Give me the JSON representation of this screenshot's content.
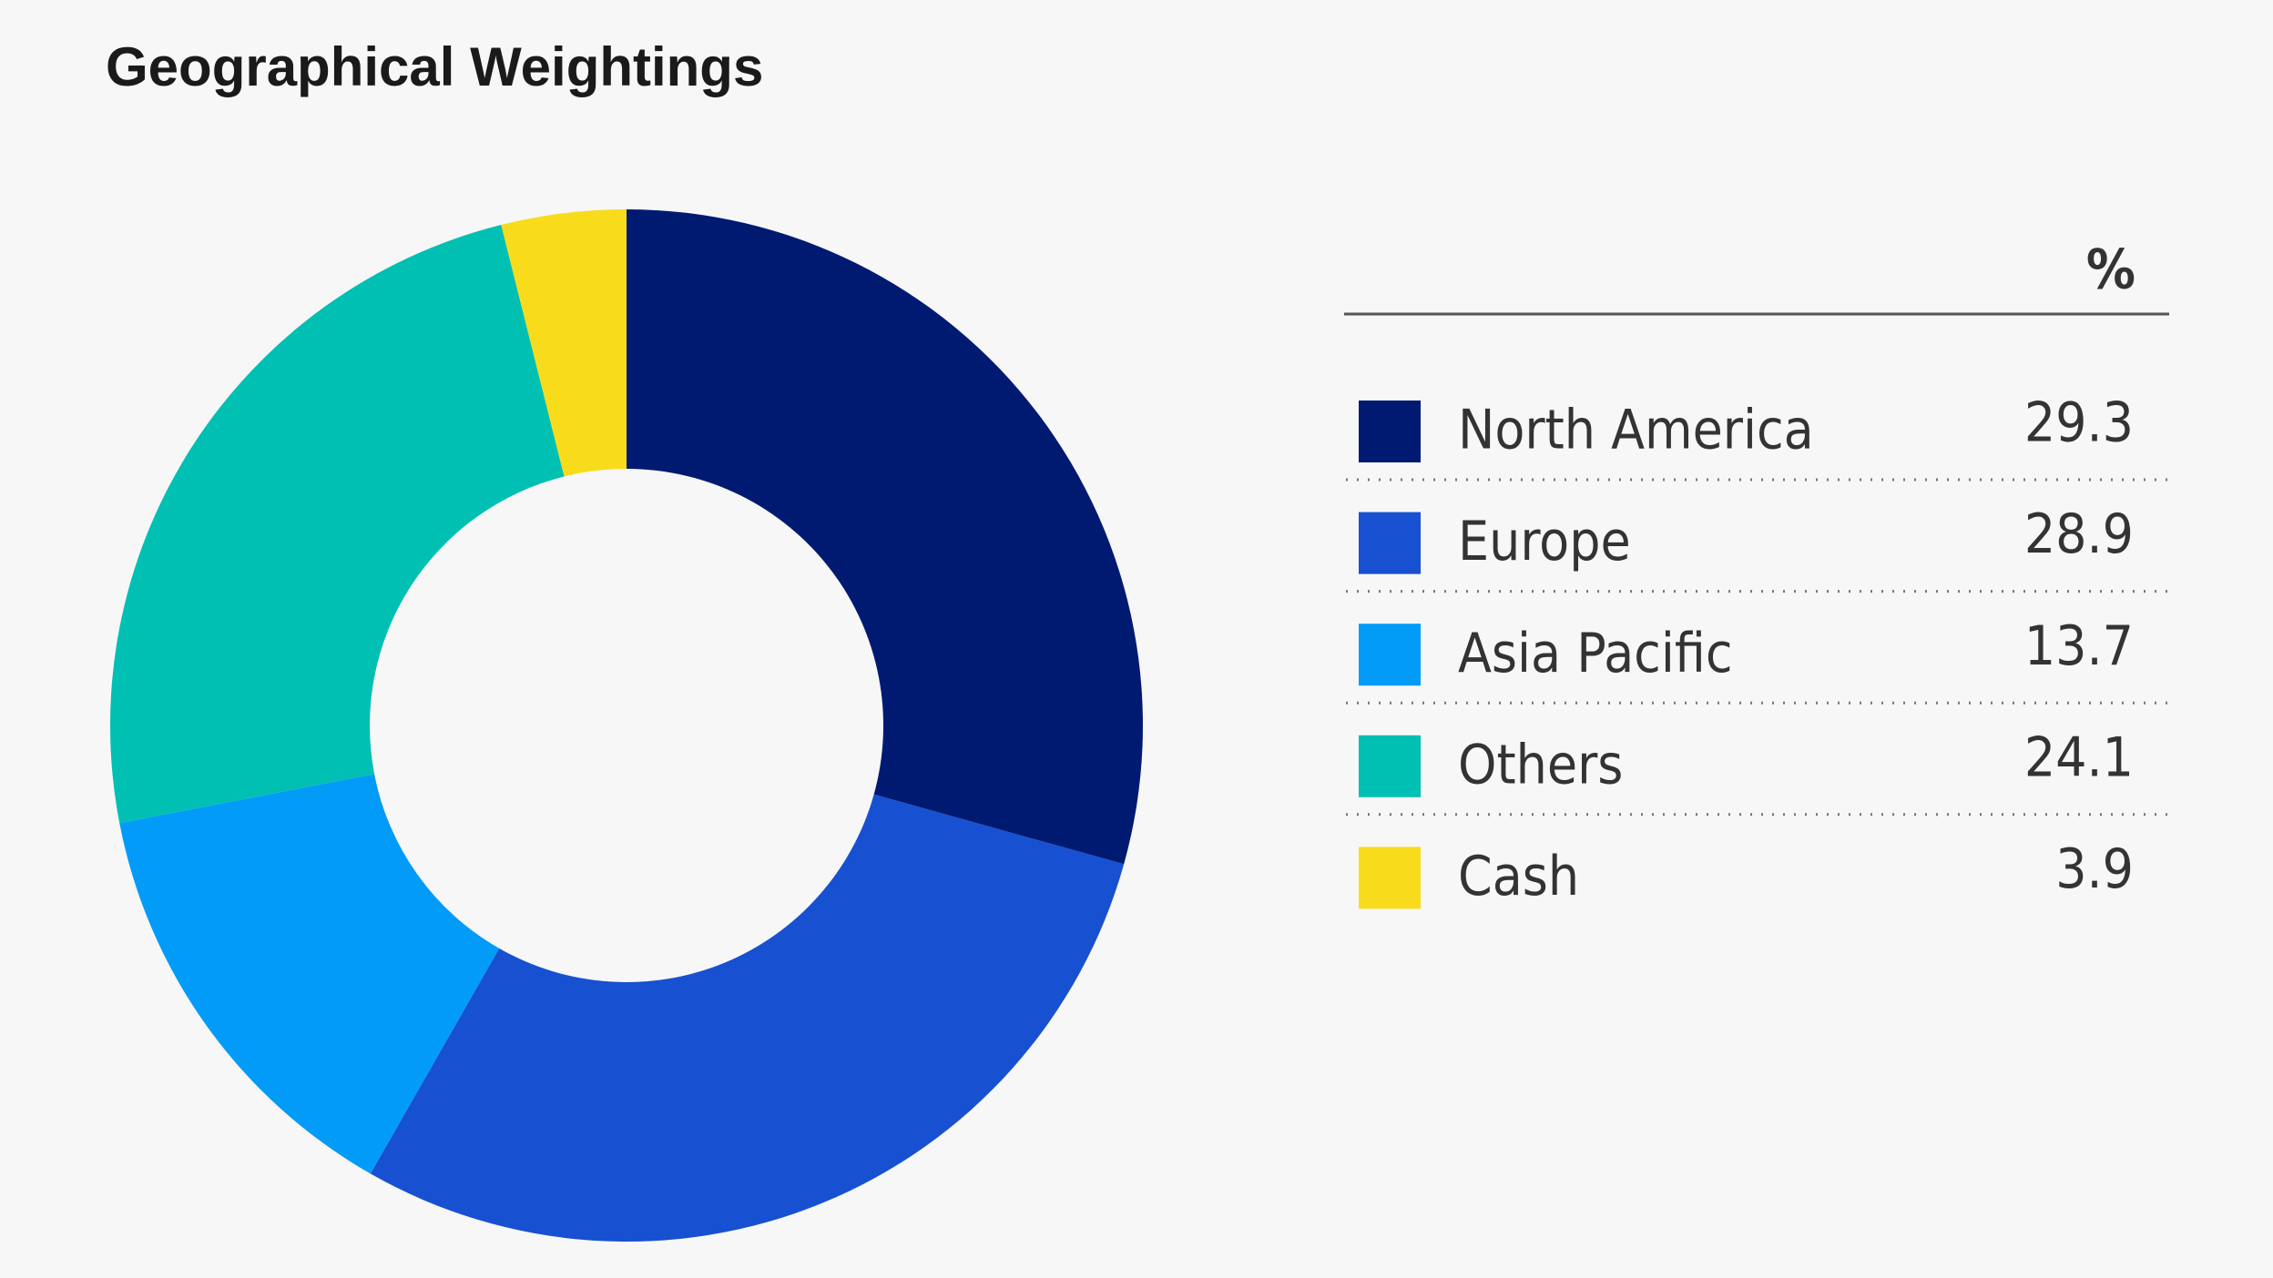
{
  "chart_data": {
    "type": "donut",
    "title": "Geographical Weightings",
    "categories": [
      "North America",
      "Europe",
      "Asia Pacific",
      "Others",
      "Cash"
    ],
    "values": [
      29.3,
      28.9,
      13.7,
      24.1,
      3.9
    ],
    "colors": [
      "#001a72",
      "#1750d1",
      "#039bf8",
      "#00bfb3",
      "#f8dc1c"
    ],
    "value_header": "%"
  }
}
